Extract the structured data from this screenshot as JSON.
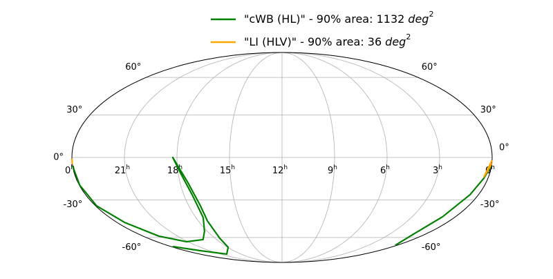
{
  "chart_data": {
    "type": "mollweide",
    "grid": true,
    "xlim": [
      24,
      0
    ],
    "ylim": [
      -90,
      90
    ],
    "xtick_unit": "h",
    "xticks": [
      {
        "value": 24,
        "label": "0"
      },
      21,
      18,
      15,
      12,
      9,
      6,
      3,
      {
        "value": 0,
        "label": "0"
      }
    ],
    "yticks": [
      {
        "value": -60,
        "label": "-60°"
      },
      {
        "value": -30,
        "label": "-30°"
      },
      {
        "value": 0,
        "label": "0°"
      },
      {
        "value": 30,
        "label": "30°"
      },
      {
        "value": 60,
        "label": "60°"
      }
    ],
    "series": [
      {
        "name": "\"cWB (HL)\" - 90% area: 1132",
        "unit": "deg",
        "unit_power": "2",
        "color": "#008000",
        "x": [
          0.02,
          0.24,
          0.52,
          0.89,
          1.02,
          0.21,
          null,
          23.81,
          22.13,
          20.1,
          17.94,
          17.57,
          17.35,
          17.25,
          17.53,
          18.24,
          17.84,
          17.49,
          17.49,
          18.23,
          19.24,
          21.14,
          22.63,
          23.45,
          23.93,
          23.98,
          24.0
        ],
        "values": [
          -5.8,
          -14.5,
          -26.3,
          -42.8,
          -56.4,
          -67.3,
          null,
          -68.6,
          -72.9,
          -76.8,
          -69.3,
          -60.7,
          -46.1,
          -34.4,
          -17.8,
          0.0,
          -11.6,
          -26.3,
          -43.4,
          -54.6,
          -61.9,
          -63.9,
          -58.8,
          -47.2,
          -34.4,
          -19.3,
          -5.8
        ]
      },
      {
        "name": "\"LI (HLV)\" - 90% area: 36",
        "unit": "deg",
        "unit_power": "2",
        "color": "#ffa500",
        "x": [
          0.0,
          0.17,
          0.27,
          0.17,
          0.0,
          null,
          24.0,
          24.0
        ],
        "values": [
          -1.9,
          -7.7,
          -13.5,
          -9.6,
          -4.0,
          null,
          -0.8,
          -4.7
        ]
      }
    ]
  }
}
